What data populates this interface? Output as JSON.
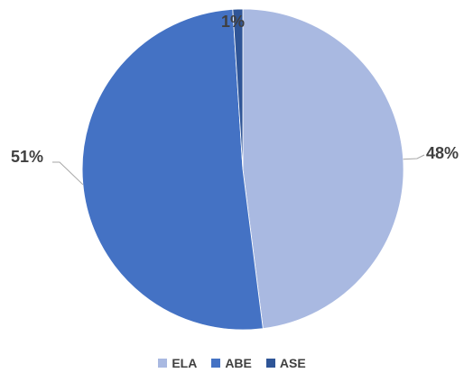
{
  "chart_data": {
    "type": "pie",
    "categories": [
      "ELA",
      "ABE",
      "ASE"
    ],
    "values": [
      48,
      51,
      1
    ],
    "labels": [
      "48%",
      "51%",
      "1%"
    ],
    "colors": [
      "#a9b9e1",
      "#4472c4",
      "#2f5597"
    ],
    "legend_position": "bottom"
  }
}
